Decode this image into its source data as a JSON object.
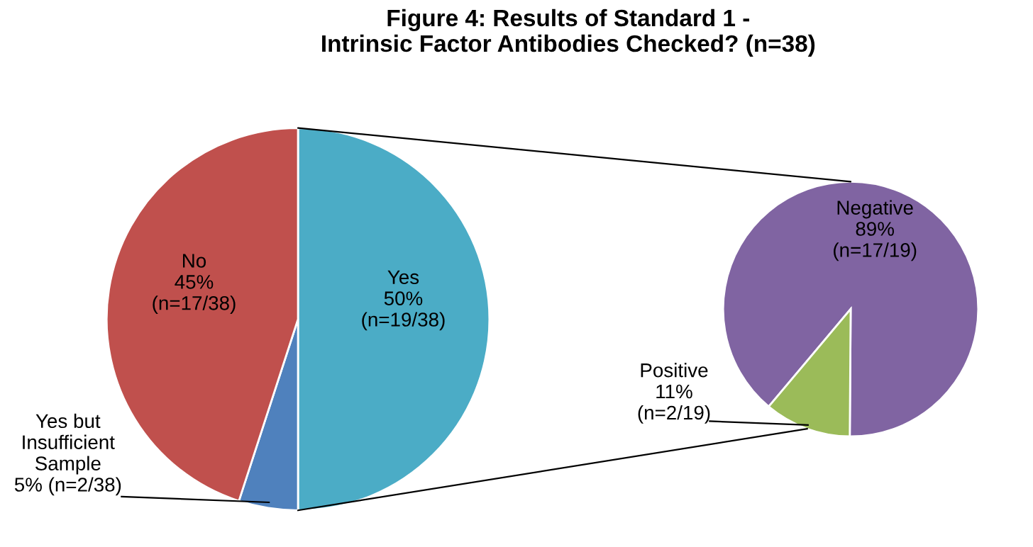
{
  "chart_data": [
    {
      "type": "pie",
      "title": "Figure 4: Results of Standard 1 -\nIntrinsic Factor Antibodies Checked? (n=38)",
      "categories": [
        "Yes",
        "Yes but\nInsufficient\nSample",
        "No"
      ],
      "values": [
        50,
        5,
        45
      ],
      "value_labels": [
        "50%\n(n=19/38)",
        "5% (n=2/38)",
        "45%\n(n=17/38)"
      ],
      "colors": [
        "#4bacc6",
        "#4f81bd",
        "#c0504d"
      ]
    },
    {
      "type": "pie",
      "categories": [
        "Negative",
        "Positive"
      ],
      "values": [
        89,
        11
      ],
      "value_labels": [
        "89%\n(n=17/19)",
        "11%\n(n=2/19)"
      ],
      "colors": [
        "#8064a2",
        "#9bbb59"
      ]
    }
  ]
}
